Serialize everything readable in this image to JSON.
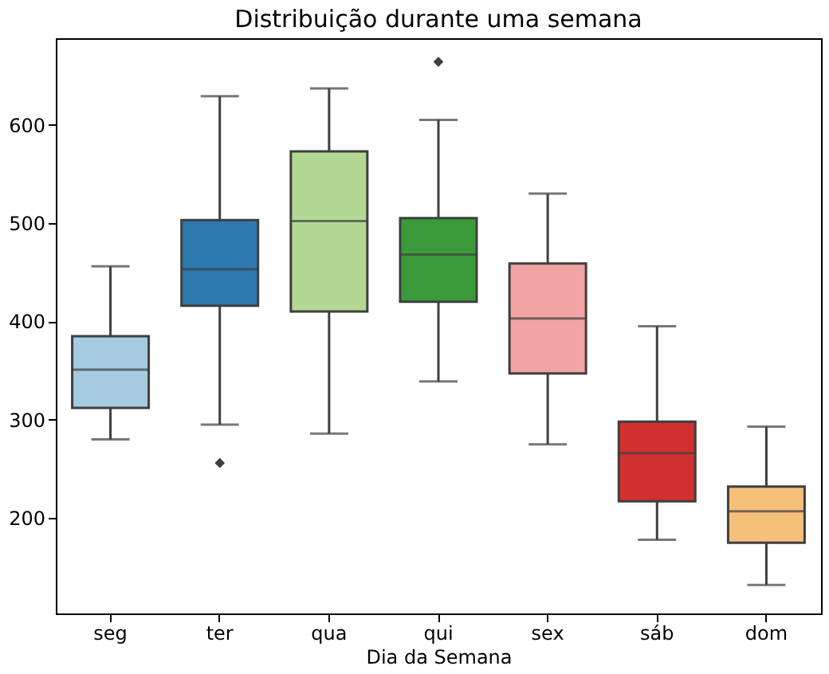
{
  "chart_data": {
    "type": "box",
    "title": "Distribuição durante uma semana",
    "xlabel": "Dia da Semana",
    "categories": [
      "seg",
      "ter",
      "qua",
      "qui",
      "sex",
      "sáb",
      "dom"
    ],
    "colors": [
      "#a6cbe0",
      "#2e79b0",
      "#b3d893",
      "#3a9a3a",
      "#f2a3a3",
      "#d0302f",
      "#f5c07a"
    ],
    "boxes": [
      {
        "low": 280,
        "q1": 312,
        "median": 351,
        "q3": 385,
        "high": 456
      },
      {
        "low": 295,
        "q1": 416,
        "median": 453,
        "q3": 503,
        "high": 629,
        "outliers": [
          256
        ]
      },
      {
        "low": 286,
        "q1": 410,
        "median": 502,
        "q3": 573,
        "high": 637
      },
      {
        "low": 339,
        "q1": 420,
        "median": 468,
        "q3": 505,
        "high": 605,
        "outliers": [
          664
        ]
      },
      {
        "low": 275,
        "q1": 347,
        "median": 403,
        "q3": 459,
        "high": 530
      },
      {
        "low": 178,
        "q1": 217,
        "median": 266,
        "q3": 298,
        "high": 395
      },
      {
        "low": 132,
        "q1": 175,
        "median": 207,
        "q3": 232,
        "high": 293
      }
    ],
    "ylim": [
      103,
      688
    ],
    "yticks": [
      200,
      300,
      400,
      500,
      600
    ],
    "grid": false,
    "legend": false
  }
}
